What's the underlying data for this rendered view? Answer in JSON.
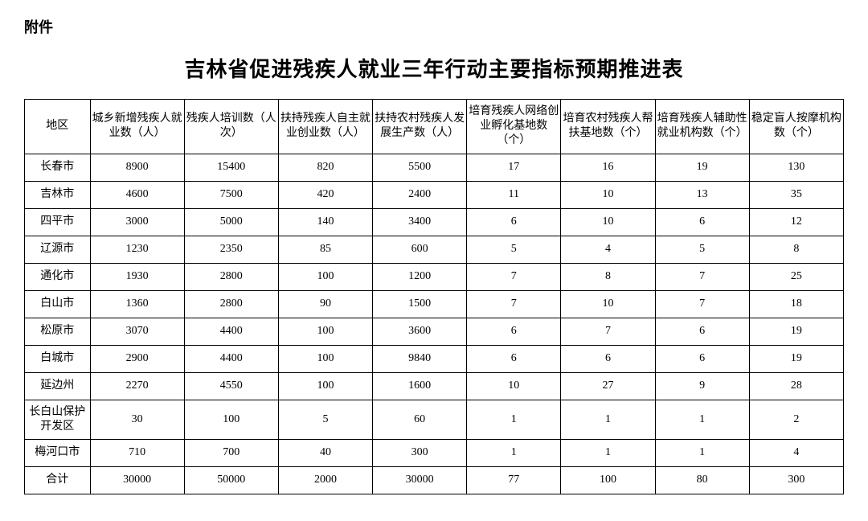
{
  "attachment_label": "附件",
  "title": "吉林省促进残疾人就业三年行动主要指标预期推进表",
  "table": {
    "columns": [
      "地区",
      "城乡新增残疾人就业数（人）",
      "残疾人培训数（人次）",
      "扶持残疾人自主就业创业数（人）",
      "扶持农村残疾人发展生产数（人）",
      "培育残疾人网络创业孵化基地数（个）",
      "培育农村残疾人帮扶基地数（个）",
      "培育残疾人辅助性就业机构数（个）",
      "稳定盲人按摩机构数（个）"
    ],
    "rows": [
      [
        "长春市",
        "8900",
        "15400",
        "820",
        "5500",
        "17",
        "16",
        "19",
        "130"
      ],
      [
        "吉林市",
        "4600",
        "7500",
        "420",
        "2400",
        "11",
        "10",
        "13",
        "35"
      ],
      [
        "四平市",
        "3000",
        "5000",
        "140",
        "3400",
        "6",
        "10",
        "6",
        "12"
      ],
      [
        "辽源市",
        "1230",
        "2350",
        "85",
        "600",
        "5",
        "4",
        "5",
        "8"
      ],
      [
        "通化市",
        "1930",
        "2800",
        "100",
        "1200",
        "7",
        "8",
        "7",
        "25"
      ],
      [
        "白山市",
        "1360",
        "2800",
        "90",
        "1500",
        "7",
        "10",
        "7",
        "18"
      ],
      [
        "松原市",
        "3070",
        "4400",
        "100",
        "3600",
        "6",
        "7",
        "6",
        "19"
      ],
      [
        "白城市",
        "2900",
        "4400",
        "100",
        "9840",
        "6",
        "6",
        "6",
        "19"
      ],
      [
        "延边州",
        "2270",
        "4550",
        "100",
        "1600",
        "10",
        "27",
        "9",
        "28"
      ],
      [
        "长白山保护开发区",
        "30",
        "100",
        "5",
        "60",
        "1",
        "1",
        "1",
        "2"
      ],
      [
        "梅河口市",
        "710",
        "700",
        "40",
        "300",
        "1",
        "1",
        "1",
        "4"
      ],
      [
        "合计",
        "30000",
        "50000",
        "2000",
        "30000",
        "77",
        "100",
        "80",
        "300"
      ]
    ]
  },
  "styling": {
    "background_color": "#ffffff",
    "text_color": "#000000",
    "border_color": "#000000",
    "title_fontsize": 26,
    "header_fontsize": 14,
    "cell_fontsize": 14,
    "font_family": "SimSun"
  }
}
